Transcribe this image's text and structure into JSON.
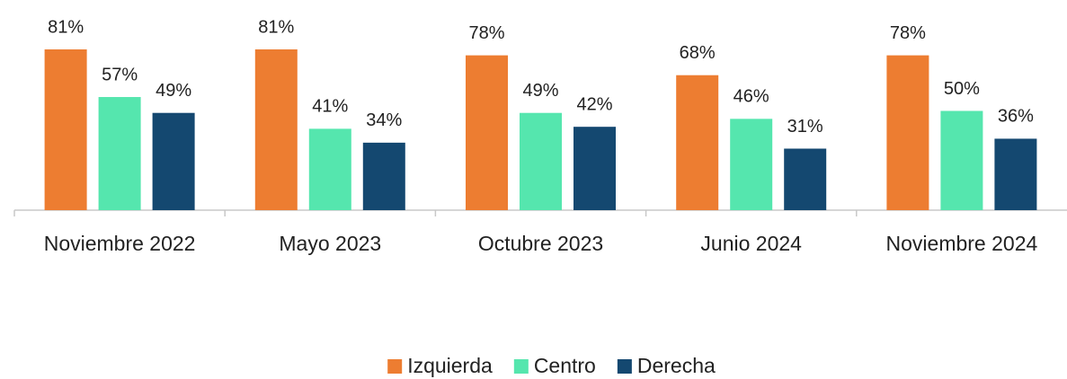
{
  "chart_data": {
    "type": "bar",
    "categories": [
      "Noviembre 2022",
      "Mayo 2023",
      "Octubre 2023",
      "Junio 2024",
      "Noviembre 2024"
    ],
    "series": [
      {
        "name": "Izquierda",
        "color": "#ED7D31",
        "values": [
          81,
          81,
          78,
          68,
          78
        ],
        "value_labels": [
          "81%",
          "81%",
          "78%",
          "68%",
          "78%"
        ]
      },
      {
        "name": "Centro",
        "color": "#55E6AE",
        "values": [
          57,
          41,
          49,
          46,
          50
        ],
        "value_labels": [
          "57%",
          "41%",
          "49%",
          "46%",
          "50%"
        ]
      },
      {
        "name": "Derecha",
        "color": "#144870",
        "values": [
          49,
          34,
          42,
          31,
          36
        ],
        "value_labels": [
          "49%",
          "34%",
          "42%",
          "31%",
          "36%"
        ]
      }
    ],
    "legend": "bottom"
  }
}
